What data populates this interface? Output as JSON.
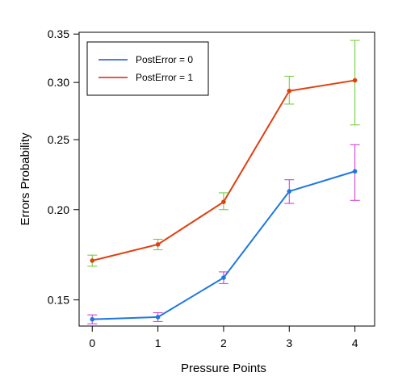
{
  "chart_data": {
    "type": "line",
    "title": "",
    "xlabel": "Pressure Points",
    "ylabel": "Errors Probability",
    "x": [
      0,
      1,
      2,
      3,
      4
    ],
    "x_ticks": [
      "0",
      "1",
      "2",
      "3",
      "4"
    ],
    "y_ticks": [
      "0.15",
      "0.20",
      "0.25",
      "0.30",
      "0.35"
    ],
    "y_tick_values": [
      0.15,
      0.2,
      0.25,
      0.3,
      0.35
    ],
    "xlim": [
      -0.2,
      4.3
    ],
    "ylim": [
      0.138,
      0.352
    ],
    "y_scale": "log",
    "grid": false,
    "legend_position": "top-left",
    "series": [
      {
        "name": "PostError = 0",
        "color": "#1f78e0",
        "errorbar_color": "#cc33cc",
        "values": [
          0.141,
          0.142,
          0.161,
          0.212,
          0.226
        ],
        "err_low": [
          0.139,
          0.14,
          0.158,
          0.204,
          0.206
        ],
        "err_high": [
          0.143,
          0.144,
          0.164,
          0.22,
          0.246
        ]
      },
      {
        "name": "PostError = 1",
        "color": "#e04010",
        "errorbar_color": "#66cc33",
        "values": [
          0.17,
          0.179,
          0.205,
          0.292,
          0.302
        ],
        "err_low": [
          0.167,
          0.176,
          0.2,
          0.28,
          0.262
        ],
        "err_high": [
          0.173,
          0.182,
          0.211,
          0.306,
          0.343
        ]
      }
    ]
  }
}
